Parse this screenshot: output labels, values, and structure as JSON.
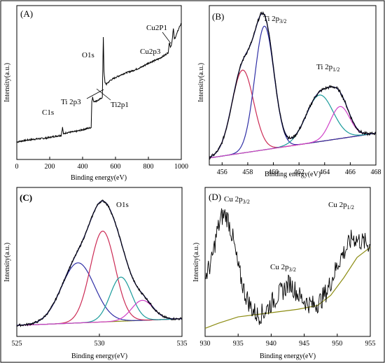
{
  "chart_data": [
    {
      "id": "A",
      "type": "line",
      "panel_label": "(A)",
      "xlabel": "Binding energy(eV)",
      "ylabel": "Intensity(a.u.)",
      "xlim": [
        0,
        1000
      ],
      "xticks": [
        0,
        200,
        400,
        600,
        800,
        1000
      ],
      "ylim": [
        0,
        1
      ],
      "series": [
        {
          "name": "survey",
          "x": [
            0,
            40,
            100,
            180,
            240,
            270,
            278,
            284,
            300,
            360,
            420,
            452,
            456,
            461,
            466,
            480,
            500,
            520,
            526,
            530,
            536,
            545,
            570,
            600,
            650,
            700,
            760,
            800,
            860,
            900,
            920,
            928,
            934,
            940,
            945,
            948,
            952,
            958,
            965,
            975,
            990,
            1000
          ],
          "y": [
            0.08,
            0.09,
            0.1,
            0.11,
            0.125,
            0.13,
            0.19,
            0.14,
            0.15,
            0.16,
            0.18,
            0.19,
            0.39,
            0.42,
            0.39,
            0.39,
            0.4,
            0.42,
            0.88,
            0.62,
            0.53,
            0.52,
            0.55,
            0.57,
            0.6,
            0.62,
            0.65,
            0.68,
            0.71,
            0.74,
            0.76,
            0.84,
            0.8,
            0.82,
            0.86,
            0.9,
            0.94,
            0.86,
            0.88,
            0.91,
            0.96,
            0.98
          ]
        }
      ],
      "annotations": [
        "C1s",
        "Ti 2p3",
        "Ti2p1",
        "O1s",
        "Cu2p3",
        "Cu2P1"
      ]
    },
    {
      "id": "B",
      "type": "line",
      "panel_label": "(B)",
      "xlabel": "Binding energy(eV)",
      "ylabel": "Intensity(a.u.)",
      "xlim": [
        455,
        468
      ],
      "xticks": [
        456,
        458,
        460,
        462,
        464,
        466,
        468
      ],
      "ylim": [
        0,
        1
      ],
      "background_line": {
        "x": [
          455,
          468
        ],
        "y": [
          0.02,
          0.19
        ]
      },
      "peaks": [
        {
          "center": 457.6,
          "height": 0.57,
          "sigma": 0.85
        },
        {
          "center": 459.3,
          "height": 0.85,
          "sigma": 0.75
        },
        {
          "center": 463.6,
          "height": 0.32,
          "sigma": 1.05
        },
        {
          "center": 465.2,
          "height": 0.22,
          "sigma": 0.75
        }
      ],
      "colors": [
        "#cc2b55",
        "#2f2fa6",
        "#1a9b9b",
        "#d040c8"
      ],
      "background_color": "#8c8c12",
      "annotations": [
        "Ti 2p3/2",
        "Ti 2p1/2"
      ]
    },
    {
      "id": "C",
      "type": "line",
      "panel_label": "(C)",
      "xlabel": "Binding energy(eV)",
      "ylabel": "Intensity(a.u.)",
      "xlim": [
        525,
        535
      ],
      "xticks": [
        525,
        530,
        535
      ],
      "ylim": [
        0,
        1
      ],
      "background_line": {
        "x": [
          525,
          535
        ],
        "y": [
          0.03,
          0.08
        ]
      },
      "peaks": [
        {
          "center": 528.7,
          "height": 0.45,
          "sigma": 1.0
        },
        {
          "center": 530.2,
          "height": 0.68,
          "sigma": 0.75
        },
        {
          "center": 531.3,
          "height": 0.33,
          "sigma": 0.65
        },
        {
          "center": 532.6,
          "height": 0.15,
          "sigma": 0.65
        }
      ],
      "colors": [
        "#2f2fa6",
        "#cc2b55",
        "#1a9b9b",
        "#d040c8"
      ],
      "background_color": "#8c8c12",
      "annotations": [
        "O1s"
      ]
    },
    {
      "id": "D",
      "type": "line",
      "panel_label": "(D)",
      "xlabel": "Binding energy(eV)",
      "ylabel": "Intensity(a.u.)",
      "xlim": [
        930,
        955
      ],
      "xticks": [
        930,
        935,
        940,
        945,
        950,
        955
      ],
      "ylim": [
        0,
        1
      ],
      "series": [
        {
          "name": "Cu 2p raw",
          "x": [
            930,
            931,
            931.8,
            932.5,
            933,
            933.5,
            934.2,
            935,
            936,
            937,
            938,
            939,
            940,
            941,
            942,
            942.8,
            943.5,
            944.5,
            945.5,
            946.5,
            947.5,
            948.5,
            949.5,
            950.5,
            951.5,
            952.3,
            953,
            954,
            955
          ],
          "y": [
            0.42,
            0.55,
            0.78,
            0.9,
            0.92,
            0.88,
            0.73,
            0.5,
            0.3,
            0.18,
            0.12,
            0.15,
            0.22,
            0.28,
            0.33,
            0.38,
            0.33,
            0.26,
            0.22,
            0.2,
            0.24,
            0.32,
            0.45,
            0.58,
            0.66,
            0.74,
            0.72,
            0.7,
            0.68
          ]
        },
        {
          "name": "background",
          "x": [
            930,
            932,
            935,
            938,
            941,
            944,
            947,
            949,
            951,
            953,
            955
          ],
          "y": [
            0.02,
            0.06,
            0.11,
            0.13,
            0.15,
            0.17,
            0.2,
            0.28,
            0.42,
            0.58,
            0.66
          ]
        }
      ],
      "background_color": "#8c8c12",
      "annotations": [
        "Cu 2p3/2",
        "Cu 2p3/2",
        "Cu 2p1/2"
      ]
    }
  ],
  "labels": {
    "a": {
      "c1s": "C1s",
      "ti2p3": "Ti 2p3",
      "ti2p1": "Ti2p1",
      "o1s": "O1s",
      "cu2p3": "Cu2p3",
      "cu2p1": "Cu2P1"
    },
    "b": {
      "ti2p32_base": "Ti 2p",
      "ti2p32_sub": "3/2",
      "ti2p12_base": "Ti 2p",
      "ti2p12_sub": "1/2"
    },
    "c": {
      "o1s": "O1s"
    },
    "d": {
      "cu2p32a_base": "Cu 2p",
      "cu2p32a_sub": "3/2",
      "cu2p32b_base": "Cu 2p",
      "cu2p32b_sub": "3/2",
      "cu2p12_base": "Cu 2p",
      "cu2p12_sub": "1/2"
    }
  }
}
